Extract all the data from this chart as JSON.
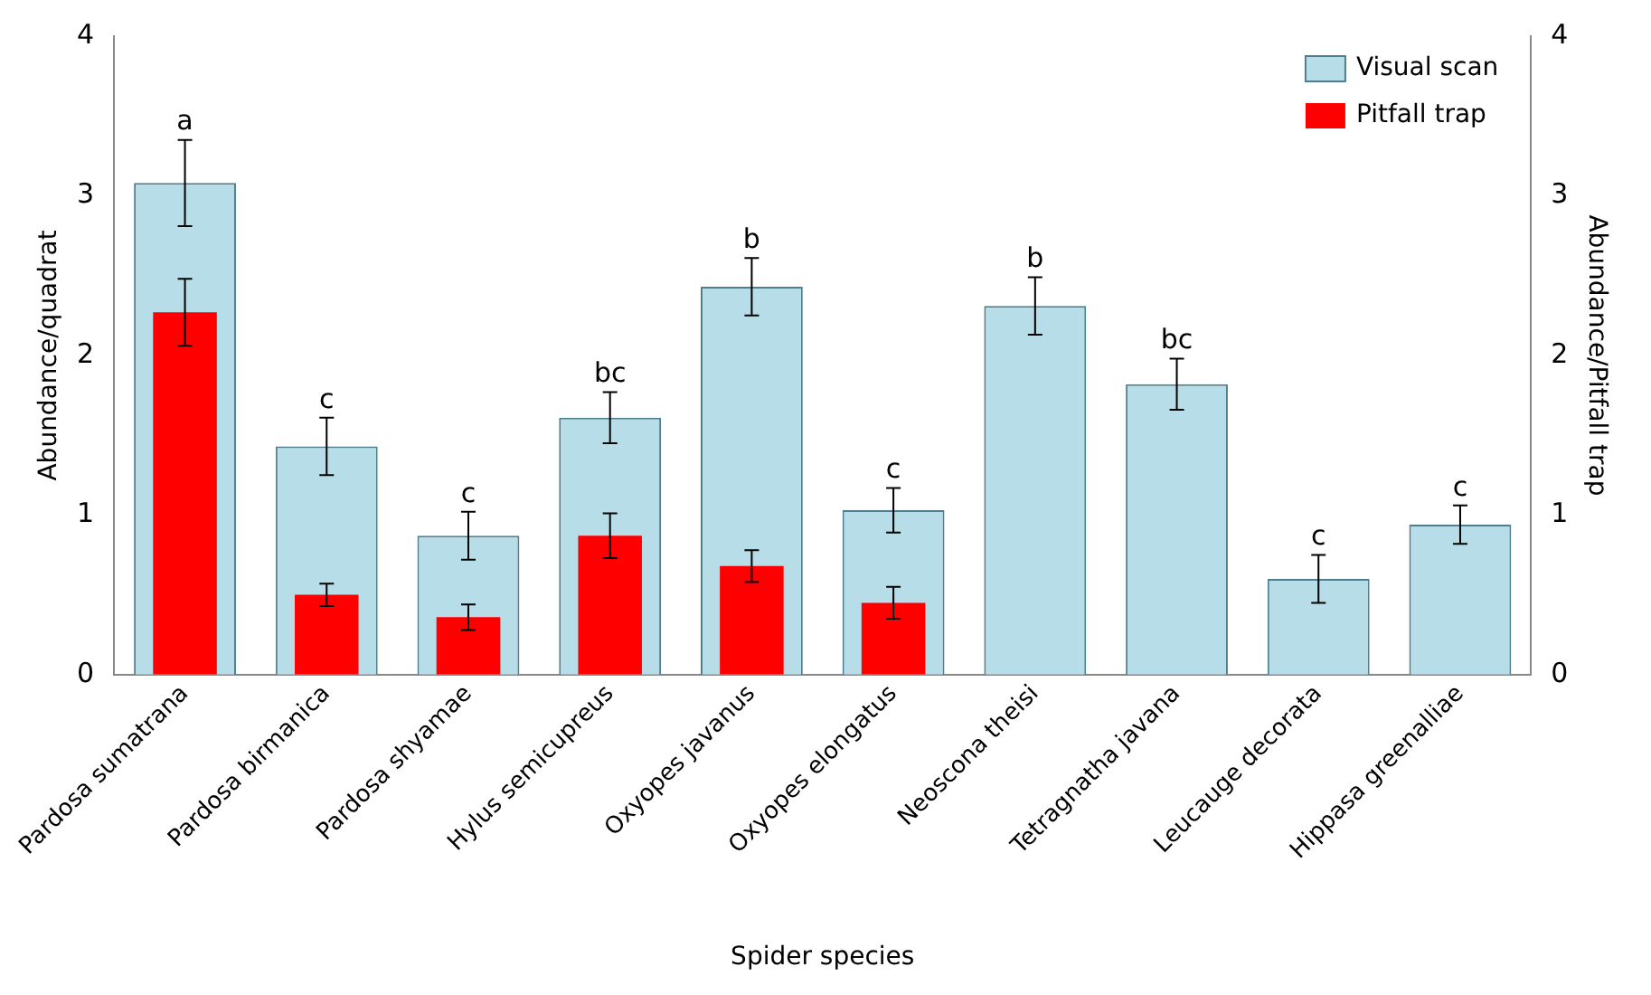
{
  "chart_data": {
    "type": "bar",
    "xlabel": "Spider species",
    "ylabel": "Abundance/quadrat",
    "y2label": "Abundance/Pitfall trap",
    "categories": [
      "Pardosa sumatrana",
      "Pardosa birmanica",
      "Pardosa shyamae",
      "Hylus semicupreus",
      "Oxyopes javanus",
      "Oxyopes elongatus",
      "Neoscona theisi",
      "Tetragnatha javana",
      "Leucauge decorata",
      "Hippasa greenalliae"
    ],
    "series": [
      {
        "name": "Visual scan",
        "color": "#b7dde8",
        "values": [
          3.08,
          1.43,
          0.87,
          1.61,
          2.43,
          1.03,
          2.31,
          1.82,
          0.6,
          0.94
        ],
        "errors": [
          0.27,
          0.18,
          0.15,
          0.16,
          0.18,
          0.14,
          0.18,
          0.16,
          0.15,
          0.12
        ]
      },
      {
        "name": "Pitfall trap",
        "color": "#ff0000",
        "axis": "y2",
        "values": [
          2.27,
          0.5,
          0.36,
          0.87,
          0.68,
          0.45,
          null,
          null,
          null,
          null
        ],
        "errors": [
          0.21,
          0.07,
          0.08,
          0.14,
          0.1,
          0.1,
          null,
          null,
          null,
          null
        ]
      }
    ],
    "ylim": [
      0,
      4
    ],
    "yticks": [
      0,
      1,
      2,
      3,
      4
    ],
    "y2lim": [
      0,
      4
    ],
    "y2ticks": [
      0,
      1,
      2,
      3,
      4
    ],
    "grid": false,
    "legend": "top right",
    "annotations": [
      {
        "text": "a",
        "x": "Pardosa sumatrana",
        "y": 3.35
      },
      {
        "text": "c",
        "x": "Pardosa birmanica",
        "y": 1.61
      },
      {
        "text": "c",
        "x": "Pardosa shyamae",
        "y": 1.02
      },
      {
        "text": "bc",
        "x": "Hylus semicupreus",
        "y": 1.77
      },
      {
        "text": "b",
        "x": "Oxyopes javanus",
        "y": 2.61
      },
      {
        "text": "c",
        "x": "Oxyopes elongatus",
        "y": 1.17
      },
      {
        "text": "b",
        "x": "Neoscona theisi",
        "y": 2.49
      },
      {
        "text": "bc",
        "x": "Tetragnatha javana",
        "y": 1.98
      },
      {
        "text": "c",
        "x": "Leucauge decorata",
        "y": 0.75
      },
      {
        "text": "c",
        "x": "Hippasa greenalliae",
        "y": 1.06
      }
    ]
  }
}
